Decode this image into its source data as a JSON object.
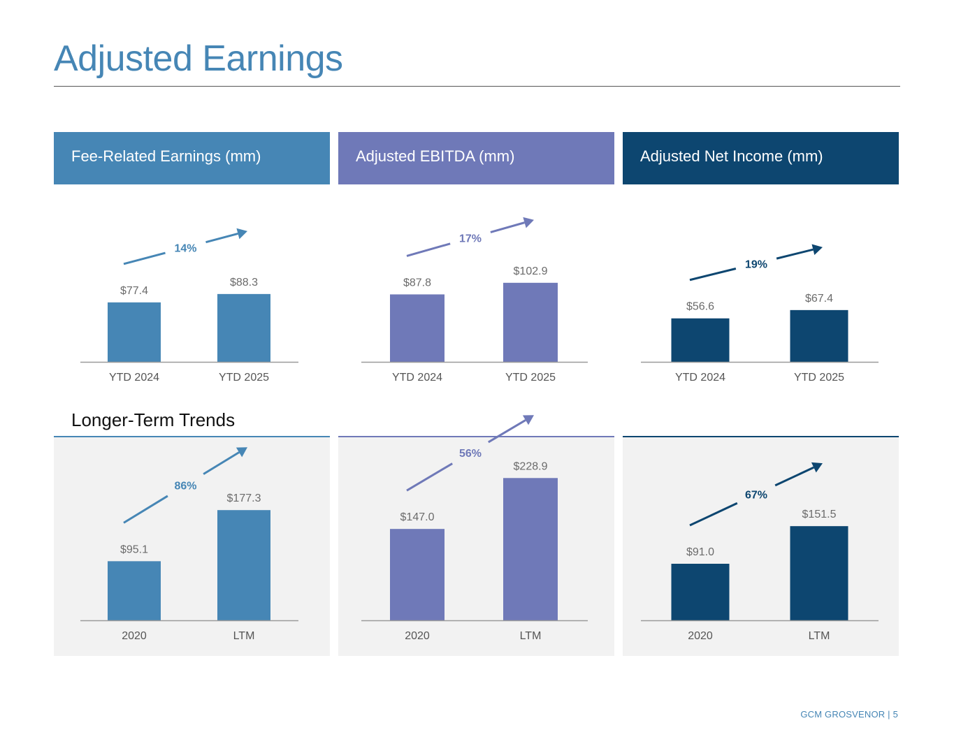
{
  "page": {
    "title": "Adjusted Earnings",
    "section_heading": "Longer-Term Trends",
    "footer": "GCM GROSVENOR | 5"
  },
  "headers": [
    {
      "label": "Fee-Related Earnings (mm)",
      "color": "#4686b5"
    },
    {
      "label": "Adjusted EBITDA (mm)",
      "color": "#6f79b8"
    },
    {
      "label": "Adjusted Net Income (mm)",
      "color": "#0d4670"
    }
  ],
  "chart_data": [
    {
      "type": "bar",
      "group": "ytd",
      "title": "Fee-Related Earnings (mm)",
      "categories": [
        "YTD 2024",
        "YTD 2025"
      ],
      "values": [
        77.4,
        88.3
      ],
      "value_labels": [
        "$77.4",
        "$88.3"
      ],
      "growth_label": "14%",
      "color": "#4686b5",
      "ylim": [
        0,
        250
      ],
      "xlabel": "",
      "ylabel": ""
    },
    {
      "type": "bar",
      "group": "ytd",
      "title": "Adjusted EBITDA (mm)",
      "categories": [
        "YTD 2024",
        "YTD 2025"
      ],
      "values": [
        87.8,
        102.9
      ],
      "value_labels": [
        "$87.8",
        "$102.9"
      ],
      "growth_label": "17%",
      "color": "#6f79b8",
      "ylim": [
        0,
        250
      ],
      "xlabel": "",
      "ylabel": ""
    },
    {
      "type": "bar",
      "group": "ytd",
      "title": "Adjusted Net Income (mm)",
      "categories": [
        "YTD 2024",
        "YTD 2025"
      ],
      "values": [
        56.6,
        67.4
      ],
      "value_labels": [
        "$56.6",
        "$67.4"
      ],
      "growth_label": "19%",
      "color": "#0d4670",
      "ylim": [
        0,
        250
      ],
      "xlabel": "",
      "ylabel": ""
    },
    {
      "type": "bar",
      "group": "trend",
      "title": "Fee-Related Earnings (mm)",
      "categories": [
        "2020",
        "LTM"
      ],
      "values": [
        95.1,
        177.3
      ],
      "value_labels": [
        "$95.1",
        "$177.3"
      ],
      "growth_label": "86%",
      "color": "#4686b5",
      "ylim": [
        0,
        250
      ],
      "xlabel": "",
      "ylabel": ""
    },
    {
      "type": "bar",
      "group": "trend",
      "title": "Adjusted EBITDA (mm)",
      "categories": [
        "2020",
        "LTM"
      ],
      "values": [
        147.0,
        228.9
      ],
      "value_labels": [
        "$147.0",
        "$228.9"
      ],
      "growth_label": "56%",
      "color": "#6f79b8",
      "ylim": [
        0,
        250
      ],
      "xlabel": "",
      "ylabel": ""
    },
    {
      "type": "bar",
      "group": "trend",
      "title": "Adjusted Net Income (mm)",
      "categories": [
        "2020",
        "LTM"
      ],
      "values": [
        91.0,
        151.5
      ],
      "value_labels": [
        "$91.0",
        "$151.5"
      ],
      "growth_label": "67%",
      "color": "#0d4670",
      "ylim": [
        0,
        250
      ],
      "xlabel": "",
      "ylabel": ""
    }
  ]
}
